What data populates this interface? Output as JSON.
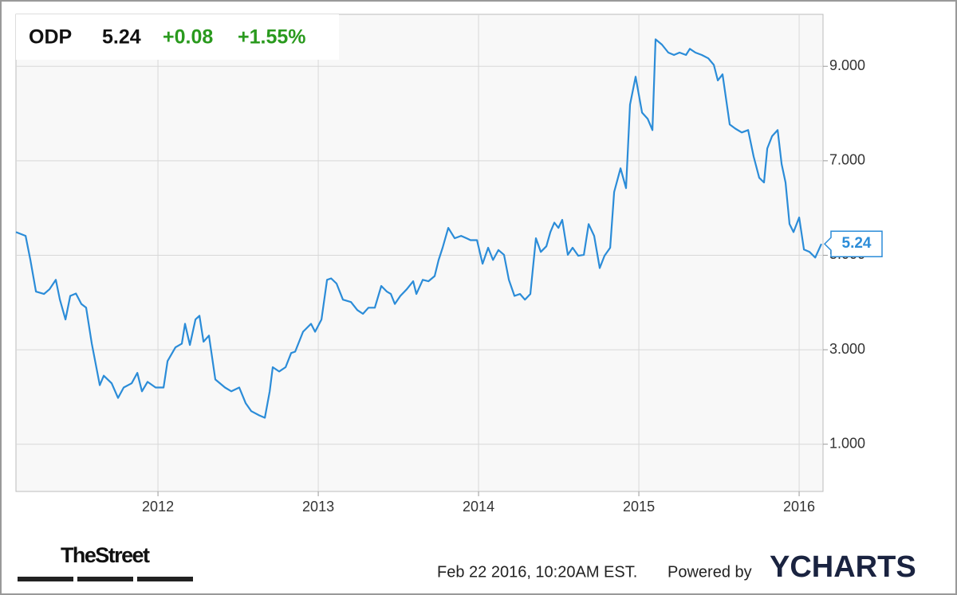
{
  "chart_data": {
    "type": "line",
    "header": {
      "symbol": "ODP",
      "price": "5.24",
      "change": "+0.08",
      "change_pct": "+1.55%"
    },
    "series": [
      {
        "name": "ODP",
        "color": "#2b8cd8",
        "x": [
          2011.114,
          2011.174,
          2011.204,
          2011.239,
          2011.289,
          2011.323,
          2011.363,
          2011.388,
          2011.423,
          2011.453,
          2011.488,
          2011.522,
          2011.552,
          2011.587,
          2011.637,
          2011.662,
          2011.711,
          2011.751,
          2011.786,
          2011.836,
          2011.871,
          2011.9,
          2011.935,
          2011.985,
          2012.035,
          2012.06,
          2012.109,
          2012.149,
          2012.169,
          2012.199,
          2012.234,
          2012.259,
          2012.284,
          2012.318,
          2012.358,
          2012.418,
          2012.458,
          2012.507,
          2012.547,
          2012.582,
          2012.632,
          2012.667,
          2012.697,
          2012.716,
          2012.756,
          2012.796,
          2012.831,
          2012.856,
          2012.905,
          2012.955,
          2012.98,
          2013.02,
          2013.055,
          2013.08,
          2013.114,
          2013.154,
          2013.204,
          2013.244,
          2013.279,
          2013.313,
          2013.353,
          2013.393,
          2013.428,
          2013.453,
          2013.478,
          2013.512,
          2013.552,
          2013.592,
          2013.612,
          2013.652,
          2013.687,
          2013.726,
          2013.751,
          2013.776,
          2013.811,
          2013.851,
          2013.891,
          2013.925,
          2013.95,
          2013.99,
          2014.025,
          2014.06,
          2014.09,
          2014.124,
          2014.159,
          2014.189,
          2014.224,
          2014.259,
          2014.289,
          2014.323,
          2014.358,
          2014.388,
          2014.423,
          2014.448,
          2014.473,
          2014.498,
          2014.522,
          2014.557,
          2014.587,
          2014.622,
          2014.657,
          2014.687,
          2014.721,
          2014.756,
          2014.786,
          2014.821,
          2014.846,
          2014.886,
          2014.92,
          2014.945,
          2014.98,
          2015.02,
          2015.055,
          2015.085,
          2015.104,
          2015.144,
          2015.184,
          2015.219,
          2015.254,
          2015.294,
          2015.318,
          2015.353,
          2015.393,
          2015.433,
          2015.468,
          2015.493,
          2015.522,
          2015.542,
          2015.567,
          2015.602,
          2015.642,
          2015.682,
          2015.716,
          2015.751,
          2015.781,
          2015.801,
          2015.831,
          2015.866,
          2015.891,
          2015.915,
          2015.94,
          2015.965,
          2016.0,
          2016.03,
          2016.065,
          2016.1,
          2016.139
        ],
        "values": [
          5.49,
          5.41,
          4.9,
          4.23,
          4.18,
          4.28,
          4.48,
          4.06,
          3.64,
          4.14,
          4.19,
          3.97,
          3.89,
          3.13,
          2.25,
          2.45,
          2.29,
          1.98,
          2.2,
          2.29,
          2.51,
          2.12,
          2.32,
          2.2,
          2.2,
          2.76,
          3.05,
          3.13,
          3.55,
          3.1,
          3.64,
          3.72,
          3.17,
          3.3,
          2.37,
          2.2,
          2.12,
          2.2,
          1.87,
          1.7,
          1.61,
          1.56,
          2.12,
          2.63,
          2.54,
          2.63,
          2.93,
          2.96,
          3.38,
          3.55,
          3.38,
          3.64,
          4.48,
          4.51,
          4.4,
          4.06,
          4.01,
          3.84,
          3.76,
          3.89,
          3.89,
          4.35,
          4.23,
          4.18,
          3.97,
          4.14,
          4.28,
          4.45,
          4.18,
          4.48,
          4.45,
          4.56,
          4.9,
          5.16,
          5.58,
          5.36,
          5.41,
          5.36,
          5.32,
          5.32,
          4.82,
          5.16,
          4.9,
          5.11,
          5.01,
          4.48,
          4.14,
          4.18,
          4.06,
          4.18,
          5.36,
          5.07,
          5.19,
          5.49,
          5.69,
          5.58,
          5.75,
          5.01,
          5.16,
          4.99,
          5.01,
          5.66,
          5.41,
          4.73,
          4.99,
          5.16,
          6.34,
          6.84,
          6.42,
          8.19,
          8.78,
          8.02,
          7.89,
          7.65,
          9.57,
          9.46,
          9.29,
          9.24,
          9.29,
          9.24,
          9.37,
          9.29,
          9.24,
          9.17,
          9.03,
          8.7,
          8.83,
          8.36,
          7.77,
          7.68,
          7.6,
          7.65,
          7.09,
          6.64,
          6.54,
          7.26,
          7.52,
          7.65,
          6.93,
          6.54,
          5.66,
          5.49,
          5.8,
          5.12,
          5.07,
          4.95,
          5.24
        ]
      }
    ],
    "xlim": [
      2011.114,
      2016.149
    ],
    "xticks": [
      2012,
      2013,
      2014,
      2015,
      2016
    ],
    "ylim": [
      0,
      10.1
    ],
    "yticks": [
      {
        "value": 1,
        "label": "1.000"
      },
      {
        "value": 3,
        "label": "3.000"
      },
      {
        "value": 5,
        "label": "5.000"
      },
      {
        "value": 7,
        "label": "7.000"
      },
      {
        "value": 9,
        "label": "9.000"
      }
    ],
    "grid": true,
    "footer": {
      "logo": "TheStreet",
      "timestamp": "Feb 22 2016, 10:20AM EST.",
      "powered": "Powered by",
      "brand": "YCHARTS"
    }
  }
}
